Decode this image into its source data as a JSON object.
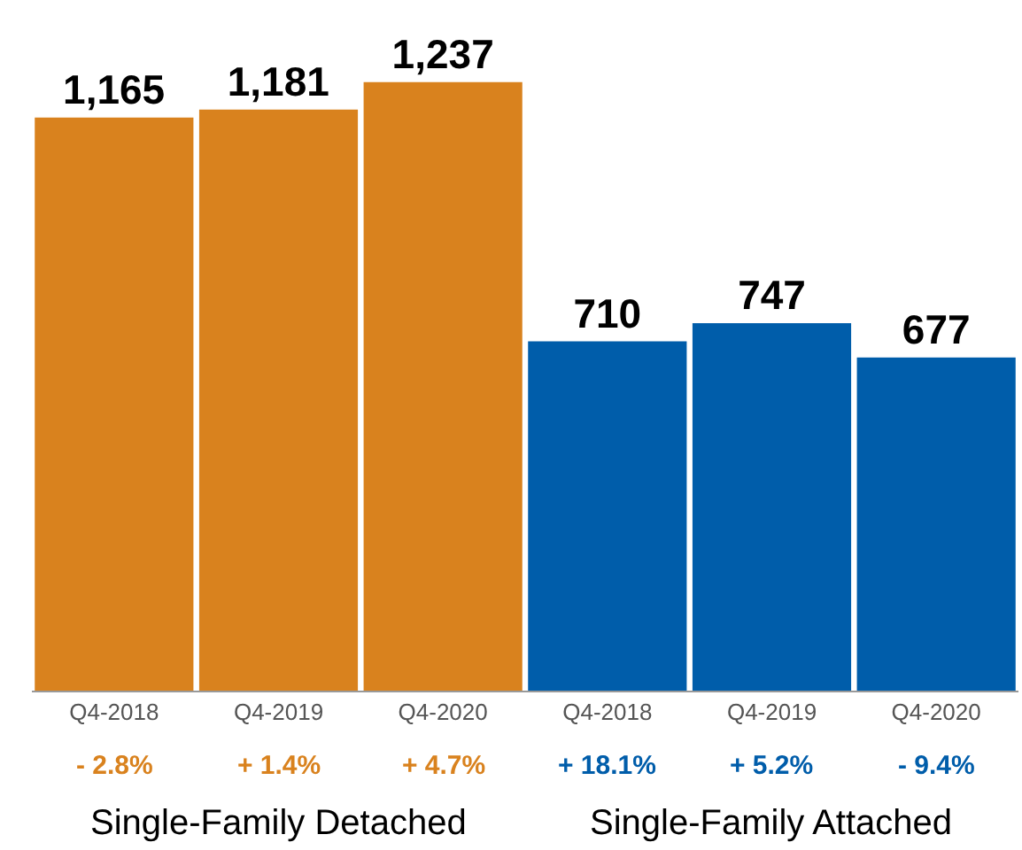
{
  "chart_data": {
    "type": "bar",
    "categories": [
      "Q4-2018",
      "Q4-2019",
      "Q4-2020",
      "Q4-2018",
      "Q4-2019",
      "Q4-2020"
    ],
    "series": [
      {
        "color": "#d9821e",
        "values": [
          1165,
          1181,
          1237,
          null,
          null,
          null
        ],
        "value_labels": [
          "1,165",
          "1,181",
          "1,237",
          null,
          null,
          null
        ]
      },
      {
        "color": "#005daa",
        "values": [
          null,
          null,
          null,
          710,
          747,
          677
        ],
        "value_labels": [
          null,
          null,
          null,
          "710",
          "747",
          "677"
        ]
      }
    ],
    "annotations": [
      "- 2.8%",
      "+ 1.4%",
      "+ 4.7%",
      "+ 18.1%",
      "+ 5.2%",
      "- 9.4%",
      "Single-Family Detached",
      "Single-Family Attached"
    ]
  }
}
